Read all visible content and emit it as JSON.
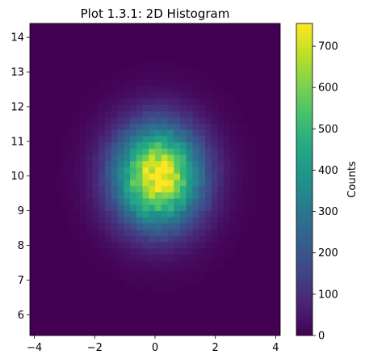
{
  "chart_data": {
    "type": "heatmap",
    "title": "Plot 1.3.1: 2D Histogram",
    "xlabel": "",
    "ylabel": "",
    "xlim": [
      -4.15,
      4.15
    ],
    "ylim": [
      5.4,
      14.4
    ],
    "x_ticks": [
      -4,
      -2,
      0,
      2,
      4
    ],
    "y_ticks": [
      6,
      7,
      8,
      9,
      10,
      11,
      12,
      13,
      14
    ],
    "colorbar": {
      "label": "Counts",
      "range": [
        0,
        755
      ],
      "ticks": [
        0,
        100,
        200,
        300,
        400,
        500,
        600,
        700
      ],
      "colormap": "viridis"
    },
    "distribution": {
      "x_center": 0.1,
      "y_center": 10.0,
      "x_spread": 1.0,
      "y_spread": 1.0,
      "peak_count": 755
    },
    "grid": false,
    "colors": {
      "background": "#440154",
      "low": "#440154",
      "high": "#fde725"
    }
  }
}
